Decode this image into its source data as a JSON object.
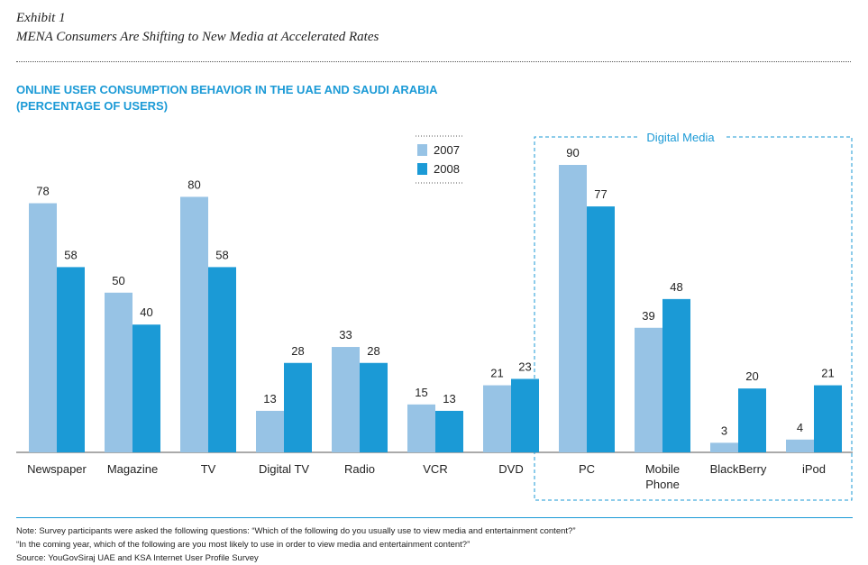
{
  "header": {
    "exhibit": "Exhibit 1",
    "subtitle": "MENA Consumers Are Shifting to New Media at Accelerated Rates"
  },
  "chart_data": {
    "type": "bar",
    "title": "ONLINE USER CONSUMPTION BEHAVIOR IN THE UAE AND SAUDI ARABIA",
    "subtitle": "(PERCENTAGE OF USERS)",
    "categories": [
      "Newspaper",
      "Magazine",
      "TV",
      "Digital TV",
      "Radio",
      "VCR",
      "DVD",
      "PC",
      "Mobile\nPhone",
      "BlackBerry",
      "iPod"
    ],
    "series": [
      {
        "name": "2007",
        "values": [
          78,
          50,
          80,
          13,
          33,
          15,
          21,
          90,
          39,
          3,
          4
        ],
        "color": "#97c3e5"
      },
      {
        "name": "2008",
        "values": [
          58,
          40,
          58,
          28,
          28,
          13,
          23,
          77,
          48,
          20,
          21
        ],
        "color": "#1b9ad6"
      }
    ],
    "ylim": [
      0,
      100
    ],
    "grid": false,
    "legend": "top-center",
    "annotations": [
      {
        "text": "Digital Media",
        "categories": [
          "PC",
          "Mobile\nPhone",
          "BlackBerry",
          "iPod"
        ]
      }
    ]
  },
  "footer": {
    "note_line1": "Note: Survey participants were asked the following questions: “Which of the following do you usually use to view media and entertainment content?”",
    "note_line2": "“In the coming year, which of the following are you most likely to use in order to view media and entertainment content?”",
    "source": "Source: YouGovSiraj UAE and KSA Internet User Profile Survey"
  }
}
